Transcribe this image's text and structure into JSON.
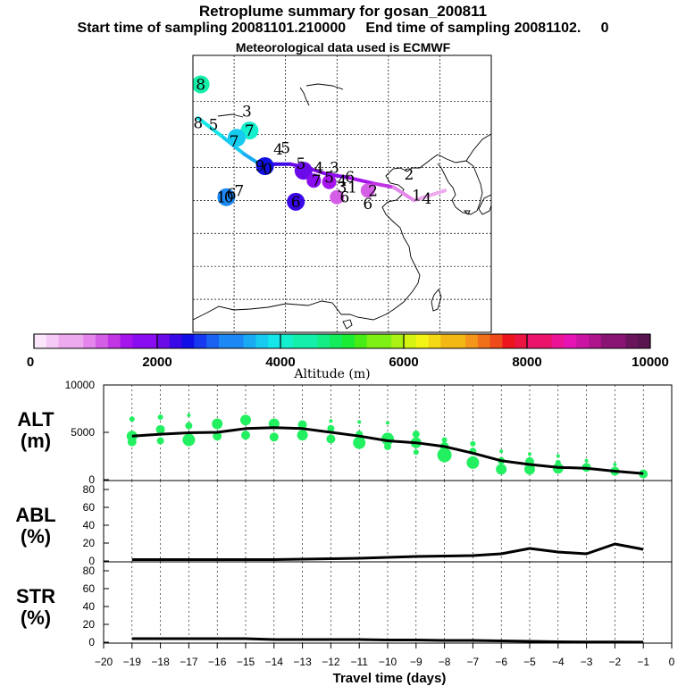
{
  "title_line1": "Retroplume summary for gosan_200811",
  "title_line2_start": "Start time of sampling 20081101.210000",
  "title_line2_end": "End time of sampling 20081102.",
  "title_line2_tail": "0",
  "title_line3": "Meteorological data used is ECMWF",
  "colorbar": {
    "label": "Altitude (m)",
    "ticks": [
      "0",
      "2000",
      "4000",
      "6000",
      "8000",
      "10000"
    ],
    "min": 0,
    "max": 10000
  },
  "map": {
    "track_labels": [
      {
        "text": "8",
        "lon": 93.5,
        "lat": 57.6
      },
      {
        "text": "3",
        "lon": 102.5,
        "lat": 53.5
      },
      {
        "text": "8",
        "lon": 93,
        "lat": 51.8
      },
      {
        "text": "5",
        "lon": 96,
        "lat": 51.5
      },
      {
        "text": "7",
        "lon": 103,
        "lat": 50.6
      },
      {
        "text": "7",
        "lon": 100,
        "lat": 49
      },
      {
        "text": "4",
        "lon": 108.6,
        "lat": 47.8
      },
      {
        "text": "5",
        "lon": 110,
        "lat": 48
      },
      {
        "text": "9",
        "lon": 105,
        "lat": 45.3
      },
      {
        "text": "0",
        "lon": 106.5,
        "lat": 44.8
      },
      {
        "text": "5",
        "lon": 113,
        "lat": 45.6
      },
      {
        "text": "4",
        "lon": 116.5,
        "lat": 45
      },
      {
        "text": "3",
        "lon": 119.5,
        "lat": 45
      },
      {
        "text": "5",
        "lon": 118.5,
        "lat": 43.5
      },
      {
        "text": "7",
        "lon": 116,
        "lat": 43
      },
      {
        "text": "4",
        "lon": 121,
        "lat": 43
      },
      {
        "text": "6",
        "lon": 122.5,
        "lat": 43.6
      },
      {
        "text": "3",
        "lon": 121,
        "lat": 42
      },
      {
        "text": "1",
        "lon": 123,
        "lat": 42
      },
      {
        "text": "2",
        "lon": 127,
        "lat": 41.5
      },
      {
        "text": "2",
        "lon": 134,
        "lat": 44
      },
      {
        "text": "1",
        "lon": 135.5,
        "lat": 40.8
      },
      {
        "text": "4",
        "lon": 137.5,
        "lat": 40.3
      },
      {
        "text": "6",
        "lon": 121.5,
        "lat": 40.5
      },
      {
        "text": "6",
        "lon": 126,
        "lat": 39.5
      },
      {
        "text": "6",
        "lon": 112,
        "lat": 39.8
      },
      {
        "text": "1",
        "lon": 97.5,
        "lat": 40.5
      },
      {
        "text": "0",
        "lon": 99,
        "lat": 40.5
      },
      {
        "text": "6",
        "lon": 99.5,
        "lat": 41
      },
      {
        "text": "7",
        "lon": 101,
        "lat": 41.5
      }
    ],
    "track_blobs": [
      {
        "lon": 93.5,
        "lat": 57.6,
        "alt": 4300
      },
      {
        "lon": 103,
        "lat": 50.6,
        "alt": 4100
      },
      {
        "lon": 100.5,
        "lat": 49.5,
        "alt": 3800
      },
      {
        "lon": 106,
        "lat": 45.2,
        "alt": 2400
      },
      {
        "lon": 113.5,
        "lat": 44.5,
        "alt": 2100
      },
      {
        "lon": 115.5,
        "lat": 43,
        "alt": 1700
      },
      {
        "lon": 118.5,
        "lat": 42.8,
        "alt": 1600
      },
      {
        "lon": 120,
        "lat": 40.5,
        "alt": 1100
      },
      {
        "lon": 126,
        "lat": 41.5,
        "alt": 1000
      },
      {
        "lon": 112,
        "lat": 39.8,
        "alt": 2200
      },
      {
        "lon": 98.5,
        "lat": 40.5,
        "alt": 3300
      }
    ],
    "trajectory": [
      {
        "lon": 93,
        "lat": 52.5,
        "alt": 3900
      },
      {
        "lon": 98,
        "lat": 49.5,
        "alt": 3800
      },
      {
        "lon": 102,
        "lat": 47,
        "alt": 3500
      },
      {
        "lon": 105,
        "lat": 45.5,
        "alt": 2300
      },
      {
        "lon": 108,
        "lat": 45.5,
        "alt": 2300
      },
      {
        "lon": 111,
        "lat": 45.5,
        "alt": 2000
      },
      {
        "lon": 114,
        "lat": 45,
        "alt": 1800
      },
      {
        "lon": 118,
        "lat": 44,
        "alt": 1700
      },
      {
        "lon": 122,
        "lat": 43.5,
        "alt": 1500
      },
      {
        "lon": 127,
        "lat": 42.6,
        "alt": 1300
      },
      {
        "lon": 131,
        "lat": 42,
        "alt": 800
      },
      {
        "lon": 135,
        "lat": 40,
        "alt": 700
      },
      {
        "lon": 141,
        "lat": 41.5,
        "alt": 600
      }
    ]
  },
  "chart_data": [
    {
      "type": "line",
      "panel_label": [
        "ALT",
        "(m)"
      ],
      "x": [
        -19,
        -18,
        -17,
        -16,
        -15,
        -14,
        -13,
        -12,
        -11,
        -10,
        -9,
        -8,
        -7,
        -6,
        -5,
        -4,
        -3,
        -2,
        -1
      ],
      "series": [
        {
          "name": "mean altitude",
          "values": [
            4600,
            4800,
            4950,
            5000,
            5400,
            5500,
            5400,
            5000,
            4600,
            4100,
            3900,
            3500,
            2800,
            2000,
            1600,
            1300,
            1200,
            900,
            650
          ]
        }
      ],
      "ylim": [
        0,
        10000
      ],
      "yticks": [
        "0",
        "5000",
        "10000"
      ],
      "plume_points": [
        {
          "x": -19,
          "y": 4600,
          "r": 6
        },
        {
          "x": -19,
          "y": 4000,
          "r": 5
        },
        {
          "x": -19,
          "y": 6400,
          "r": 3
        },
        {
          "x": -18,
          "y": 5300,
          "r": 5
        },
        {
          "x": -18,
          "y": 4100,
          "r": 4
        },
        {
          "x": -18,
          "y": 6600,
          "r": 3
        },
        {
          "x": -17,
          "y": 4200,
          "r": 7
        },
        {
          "x": -17,
          "y": 5700,
          "r": 4
        },
        {
          "x": -17,
          "y": 6800,
          "r": 2
        },
        {
          "x": -16,
          "y": 5900,
          "r": 6
        },
        {
          "x": -16,
          "y": 4600,
          "r": 5
        },
        {
          "x": -15,
          "y": 6300,
          "r": 6
        },
        {
          "x": -15,
          "y": 4700,
          "r": 5
        },
        {
          "x": -14,
          "y": 5900,
          "r": 6
        },
        {
          "x": -14,
          "y": 4500,
          "r": 5
        },
        {
          "x": -13,
          "y": 5800,
          "r": 5
        },
        {
          "x": -13,
          "y": 4700,
          "r": 6
        },
        {
          "x": -12,
          "y": 5400,
          "r": 4
        },
        {
          "x": -12,
          "y": 4300,
          "r": 5
        },
        {
          "x": -12,
          "y": 6200,
          "r": 2
        },
        {
          "x": -11,
          "y": 3900,
          "r": 7
        },
        {
          "x": -11,
          "y": 4800,
          "r": 4
        },
        {
          "x": -11,
          "y": 6100,
          "r": 2
        },
        {
          "x": -10,
          "y": 4300,
          "r": 7
        },
        {
          "x": -10,
          "y": 3500,
          "r": 4
        },
        {
          "x": -10,
          "y": 6000,
          "r": 2
        },
        {
          "x": -9,
          "y": 3900,
          "r": 6
        },
        {
          "x": -9,
          "y": 4800,
          "r": 4
        },
        {
          "x": -9,
          "y": 2900,
          "r": 3
        },
        {
          "x": -8,
          "y": 2600,
          "r": 8
        },
        {
          "x": -8,
          "y": 3500,
          "r": 5
        },
        {
          "x": -8,
          "y": 4200,
          "r": 3
        },
        {
          "x": -7,
          "y": 1800,
          "r": 7
        },
        {
          "x": -7,
          "y": 3000,
          "r": 4
        },
        {
          "x": -7,
          "y": 3800,
          "r": 3
        },
        {
          "x": -6,
          "y": 1100,
          "r": 6
        },
        {
          "x": -6,
          "y": 2000,
          "r": 4
        },
        {
          "x": -6,
          "y": 3000,
          "r": 2
        },
        {
          "x": -5,
          "y": 1100,
          "r": 6
        },
        {
          "x": -5,
          "y": 1900,
          "r": 5
        },
        {
          "x": -5,
          "y": 2700,
          "r": 2
        },
        {
          "x": -4,
          "y": 1200,
          "r": 6
        },
        {
          "x": -4,
          "y": 1800,
          "r": 3
        },
        {
          "x": -4,
          "y": 2500,
          "r": 2
        },
        {
          "x": -3,
          "y": 1300,
          "r": 5
        },
        {
          "x": -3,
          "y": 2000,
          "r": 2
        },
        {
          "x": -2,
          "y": 900,
          "r": 5
        },
        {
          "x": -2,
          "y": 1600,
          "r": 2
        },
        {
          "x": -1,
          "y": 600,
          "r": 5
        }
      ]
    },
    {
      "type": "line",
      "panel_label": [
        "ABL",
        "(%)"
      ],
      "x": [
        -19,
        -18,
        -17,
        -16,
        -15,
        -14,
        -13,
        -12,
        -11,
        -10,
        -9,
        -8,
        -7,
        -6,
        -5,
        -4,
        -3,
        -2,
        -1
      ],
      "series": [
        {
          "name": "ABL fraction",
          "values": [
            1.5,
            1.5,
            1.5,
            1.5,
            1.5,
            1.5,
            2,
            2.5,
            3,
            4,
            5,
            5.5,
            6,
            8,
            14,
            10,
            8,
            19,
            13
          ]
        }
      ],
      "ylim": [
        0,
        90
      ],
      "yticks": [
        "0",
        "20",
        "40",
        "60",
        "80"
      ]
    },
    {
      "type": "line",
      "panel_label": [
        "STR",
        "(%)"
      ],
      "x": [
        -19,
        -18,
        -17,
        -16,
        -15,
        -14,
        -13,
        -12,
        -11,
        -10,
        -9,
        -8,
        -7,
        -6,
        -5,
        -4,
        -3,
        -2,
        -1
      ],
      "series": [
        {
          "name": "stratospheric fraction",
          "values": [
            4,
            4,
            4,
            4,
            4,
            3,
            3,
            3,
            3,
            2.5,
            2.5,
            2,
            2,
            1.5,
            1,
            0.5,
            0.3,
            0.2,
            0.1
          ]
        }
      ],
      "ylim": [
        0,
        90
      ],
      "yticks": [
        "0",
        "20",
        "40",
        "60",
        "80"
      ]
    }
  ],
  "x_axis": {
    "label": "Travel time (days)",
    "ticks": [
      "−20",
      "−19",
      "−18",
      "−17",
      "−16",
      "−15",
      "−14",
      "−13",
      "−12",
      "−11",
      "−10",
      "−9",
      "−8",
      "−7",
      "−6",
      "−5",
      "−4",
      "−3",
      "−2",
      "−1",
      "0"
    ],
    "min": -20,
    "max": 0
  }
}
